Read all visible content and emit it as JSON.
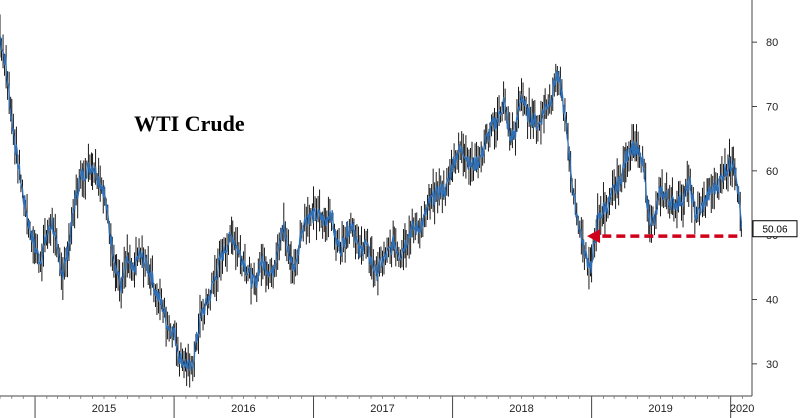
{
  "chart_data": {
    "type": "line",
    "title": "WTI Crude",
    "xlabel": "",
    "ylabel": "",
    "ylim": [
      25,
      85
    ],
    "yticks": [
      30,
      40,
      50,
      60,
      70,
      80
    ],
    "xticks": [
      "2015",
      "2016",
      "2017",
      "2018",
      "2019",
      "2020"
    ],
    "grid": false,
    "y_axis_side": "right",
    "series": [
      {
        "name": "",
        "color": "#2f6fb5",
        "candle_color": "#000000",
        "x": [
          "2014-10-01",
          "2014-10-15",
          "2014-11-01",
          "2014-11-15",
          "2014-12-01",
          "2014-12-15",
          "2015-01-01",
          "2015-01-15",
          "2015-02-01",
          "2015-02-15",
          "2015-03-01",
          "2015-03-15",
          "2015-04-01",
          "2015-04-15",
          "2015-05-01",
          "2015-05-15",
          "2015-06-01",
          "2015-06-15",
          "2015-07-01",
          "2015-07-15",
          "2015-08-01",
          "2015-08-15",
          "2015-09-01",
          "2015-09-15",
          "2015-10-01",
          "2015-10-15",
          "2015-11-01",
          "2015-11-15",
          "2015-12-01",
          "2015-12-15",
          "2016-01-01",
          "2016-01-15",
          "2016-02-01",
          "2016-02-15",
          "2016-03-01",
          "2016-03-15",
          "2016-04-01",
          "2016-04-15",
          "2016-05-01",
          "2016-05-15",
          "2016-06-01",
          "2016-06-15",
          "2016-07-01",
          "2016-07-15",
          "2016-08-01",
          "2016-08-15",
          "2016-09-01",
          "2016-09-15",
          "2016-10-01",
          "2016-10-15",
          "2016-11-01",
          "2016-11-15",
          "2016-12-01",
          "2016-12-15",
          "2017-01-01",
          "2017-01-15",
          "2017-02-01",
          "2017-02-15",
          "2017-03-01",
          "2017-03-15",
          "2017-04-01",
          "2017-04-15",
          "2017-05-01",
          "2017-05-15",
          "2017-06-01",
          "2017-06-15",
          "2017-07-01",
          "2017-07-15",
          "2017-08-01",
          "2017-08-15",
          "2017-09-01",
          "2017-09-15",
          "2017-10-01",
          "2017-10-15",
          "2017-11-01",
          "2017-11-15",
          "2017-12-01",
          "2017-12-15",
          "2018-01-01",
          "2018-01-15",
          "2018-02-01",
          "2018-02-15",
          "2018-03-01",
          "2018-03-15",
          "2018-04-01",
          "2018-04-15",
          "2018-05-01",
          "2018-05-15",
          "2018-06-01",
          "2018-06-15",
          "2018-07-01",
          "2018-07-15",
          "2018-08-01",
          "2018-08-15",
          "2018-09-01",
          "2018-09-15",
          "2018-10-01",
          "2018-10-15",
          "2018-11-01",
          "2018-11-15",
          "2018-12-01",
          "2018-12-15",
          "2019-01-01",
          "2019-01-15",
          "2019-02-01",
          "2019-02-15",
          "2019-03-01",
          "2019-03-15",
          "2019-04-01",
          "2019-04-15",
          "2019-05-01",
          "2019-05-15",
          "2019-06-01",
          "2019-06-15",
          "2019-07-01",
          "2019-07-15",
          "2019-08-01",
          "2019-08-15",
          "2019-09-01",
          "2019-09-15",
          "2019-10-01",
          "2019-10-15",
          "2019-11-01",
          "2019-11-15",
          "2019-12-01",
          "2019-12-15",
          "2020-01-01",
          "2020-01-08",
          "2020-01-15",
          "2020-01-22",
          "2020-01-29"
        ],
        "values": [
          81,
          77,
          68,
          62,
          56,
          52,
          48,
          46,
          50,
          52,
          47,
          44,
          49,
          55,
          59,
          60,
          61,
          59,
          57,
          51,
          45,
          42,
          46,
          44,
          47,
          46,
          44,
          41,
          39,
          36,
          35,
          31,
          30,
          29,
          34,
          38,
          40,
          43,
          46,
          48,
          50,
          48,
          46,
          44,
          42,
          46,
          45,
          44,
          49,
          51,
          46,
          45,
          51,
          53,
          53,
          53,
          52,
          54,
          49,
          48,
          51,
          52,
          47,
          49,
          46,
          44,
          46,
          47,
          49,
          47,
          49,
          51,
          51,
          52,
          55,
          56,
          57,
          57,
          61,
          63,
          63,
          61,
          61,
          62,
          65,
          67,
          68,
          71,
          65,
          66,
          72,
          69,
          68,
          67,
          70,
          71,
          75,
          72,
          64,
          56,
          51,
          47,
          45,
          52,
          54,
          55,
          57,
          58,
          62,
          64,
          63,
          61,
          53,
          52,
          57,
          56,
          55,
          55,
          56,
          58,
          53,
          54,
          56,
          57,
          58,
          60,
          61,
          62,
          59,
          56,
          51
        ],
        "last_value_label": "50.06"
      }
    ],
    "annotations": [
      {
        "type": "arrow",
        "style": "dashed",
        "color": "#d0021b",
        "from_date": "2020-01-29",
        "to_date": "2018-12-20",
        "value": 50
      }
    ]
  }
}
